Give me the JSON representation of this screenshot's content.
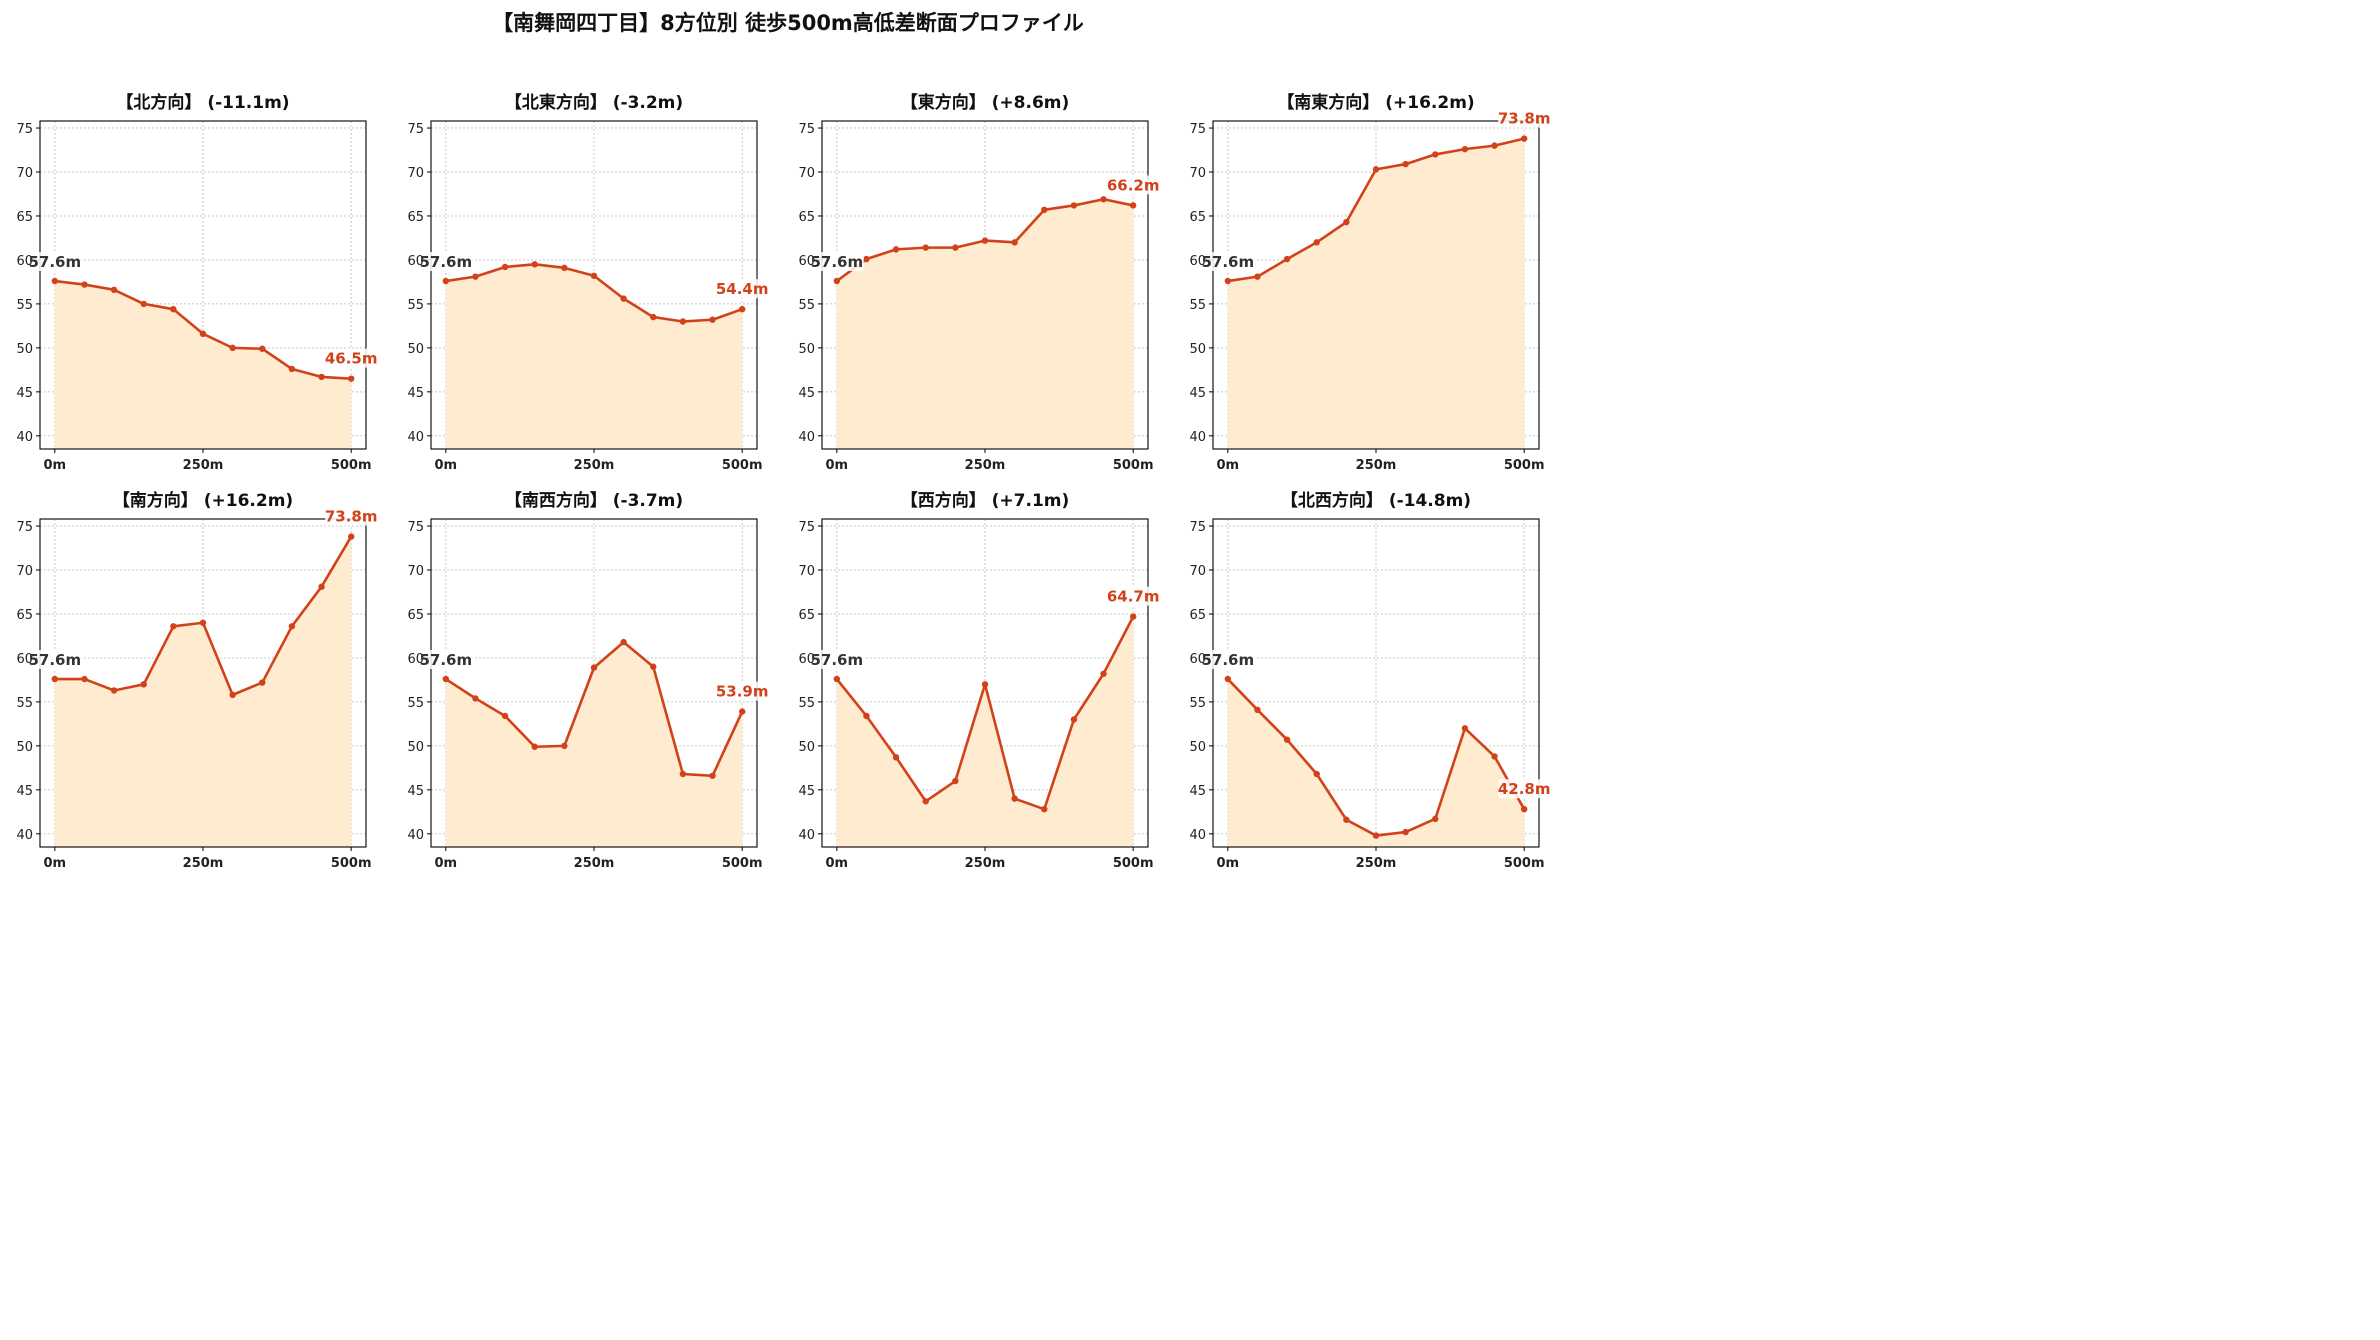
{
  "figure": {
    "title": "【南舞岡四丁目】8方位別 徒歩500m高低差断面プロファイル"
  },
  "chart_data": [
    {
      "type": "area",
      "title": "【北方向】 (-11.1m)",
      "x": [
        0,
        50,
        100,
        150,
        200,
        250,
        300,
        350,
        400,
        450,
        500
      ],
      "y": [
        57.6,
        57.2,
        56.6,
        55.0,
        54.4,
        51.6,
        50.0,
        49.9,
        47.6,
        46.7,
        46.5
      ],
      "start_label": "57.6m",
      "end_label": "46.5m",
      "ylim": [
        38.5,
        75.8
      ],
      "yticks": [
        40,
        45,
        50,
        55,
        60,
        65,
        70,
        75
      ],
      "xticks": [
        0,
        250,
        500
      ],
      "xtick_labels": [
        "0m",
        "250m",
        "500m"
      ],
      "grid": true
    },
    {
      "type": "area",
      "title": "【北東方向】 (-3.2m)",
      "x": [
        0,
        50,
        100,
        150,
        200,
        250,
        300,
        350,
        400,
        450,
        500
      ],
      "y": [
        57.6,
        58.1,
        59.2,
        59.5,
        59.1,
        58.2,
        55.6,
        53.5,
        53.0,
        53.2,
        54.4
      ],
      "start_label": "57.6m",
      "end_label": "54.4m",
      "ylim": [
        38.5,
        75.8
      ],
      "yticks": [
        40,
        45,
        50,
        55,
        60,
        65,
        70,
        75
      ],
      "xticks": [
        0,
        250,
        500
      ],
      "xtick_labels": [
        "0m",
        "250m",
        "500m"
      ],
      "grid": true
    },
    {
      "type": "area",
      "title": "【東方向】 (+8.6m)",
      "x": [
        0,
        50,
        100,
        150,
        200,
        250,
        300,
        350,
        400,
        450,
        500
      ],
      "y": [
        57.6,
        60.1,
        61.2,
        61.4,
        61.4,
        62.2,
        62.0,
        65.7,
        66.2,
        66.9,
        66.2
      ],
      "start_label": "57.6m",
      "end_label": "66.2m",
      "ylim": [
        38.5,
        75.8
      ],
      "yticks": [
        40,
        45,
        50,
        55,
        60,
        65,
        70,
        75
      ],
      "xticks": [
        0,
        250,
        500
      ],
      "xtick_labels": [
        "0m",
        "250m",
        "500m"
      ],
      "grid": true
    },
    {
      "type": "area",
      "title": "【南東方向】 (+16.2m)",
      "x": [
        0,
        50,
        100,
        150,
        200,
        250,
        300,
        350,
        400,
        450,
        500
      ],
      "y": [
        57.6,
        58.1,
        60.1,
        62.0,
        64.3,
        70.3,
        70.9,
        72.0,
        72.6,
        73.0,
        73.8
      ],
      "start_label": "57.6m",
      "end_label": "73.8m",
      "ylim": [
        38.5,
        75.8
      ],
      "yticks": [
        40,
        45,
        50,
        55,
        60,
        65,
        70,
        75
      ],
      "xticks": [
        0,
        250,
        500
      ],
      "xtick_labels": [
        "0m",
        "250m",
        "500m"
      ],
      "grid": true
    },
    {
      "type": "area",
      "title": "【南方向】 (+16.2m)",
      "x": [
        0,
        50,
        100,
        150,
        200,
        250,
        300,
        350,
        400,
        450,
        500
      ],
      "y": [
        57.6,
        57.6,
        56.3,
        57.0,
        63.6,
        64.0,
        55.8,
        57.2,
        63.6,
        68.1,
        73.8
      ],
      "start_label": "57.6m",
      "end_label": "73.8m",
      "ylim": [
        38.5,
        75.8
      ],
      "yticks": [
        40,
        45,
        50,
        55,
        60,
        65,
        70,
        75
      ],
      "xticks": [
        0,
        250,
        500
      ],
      "xtick_labels": [
        "0m",
        "250m",
        "500m"
      ],
      "grid": true
    },
    {
      "type": "area",
      "title": "【南西方向】 (-3.7m)",
      "x": [
        0,
        50,
        100,
        150,
        200,
        250,
        300,
        350,
        400,
        450,
        500
      ],
      "y": [
        57.6,
        55.4,
        53.4,
        49.9,
        50.0,
        58.9,
        61.8,
        59.0,
        46.8,
        46.6,
        53.9
      ],
      "start_label": "57.6m",
      "end_label": "53.9m",
      "ylim": [
        38.5,
        75.8
      ],
      "yticks": [
        40,
        45,
        50,
        55,
        60,
        65,
        70,
        75
      ],
      "xticks": [
        0,
        250,
        500
      ],
      "xtick_labels": [
        "0m",
        "250m",
        "500m"
      ],
      "grid": true
    },
    {
      "type": "area",
      "title": "【西方向】 (+7.1m)",
      "x": [
        0,
        50,
        100,
        150,
        200,
        250,
        300,
        350,
        400,
        450,
        500
      ],
      "y": [
        57.6,
        53.4,
        48.7,
        43.7,
        46.0,
        57.0,
        44.0,
        42.8,
        53.0,
        58.2,
        64.7
      ],
      "start_label": "57.6m",
      "end_label": "64.7m",
      "ylim": [
        38.5,
        75.8
      ],
      "yticks": [
        40,
        45,
        50,
        55,
        60,
        65,
        70,
        75
      ],
      "xticks": [
        0,
        250,
        500
      ],
      "xtick_labels": [
        "0m",
        "250m",
        "500m"
      ],
      "grid": true
    },
    {
      "type": "area",
      "title": "【北西方向】 (-14.8m)",
      "x": [
        0,
        50,
        100,
        150,
        200,
        250,
        300,
        350,
        400,
        450,
        500
      ],
      "y": [
        57.6,
        54.1,
        50.7,
        46.8,
        41.6,
        39.8,
        40.2,
        41.7,
        52.0,
        48.8,
        42.8
      ],
      "start_label": "57.6m",
      "end_label": "42.8m",
      "ylim": [
        38.5,
        75.8
      ],
      "yticks": [
        40,
        45,
        50,
        55,
        60,
        65,
        70,
        75
      ],
      "xticks": [
        0,
        250,
        500
      ],
      "xtick_labels": [
        "0m",
        "250m",
        "500m"
      ],
      "grid": true
    }
  ],
  "colors": {
    "line": "#d2421a",
    "fill": "#ffebcf",
    "grid": "#c8c8c8",
    "start_label": "#333333",
    "end_label": "#d2421a",
    "axis": "#000000"
  }
}
